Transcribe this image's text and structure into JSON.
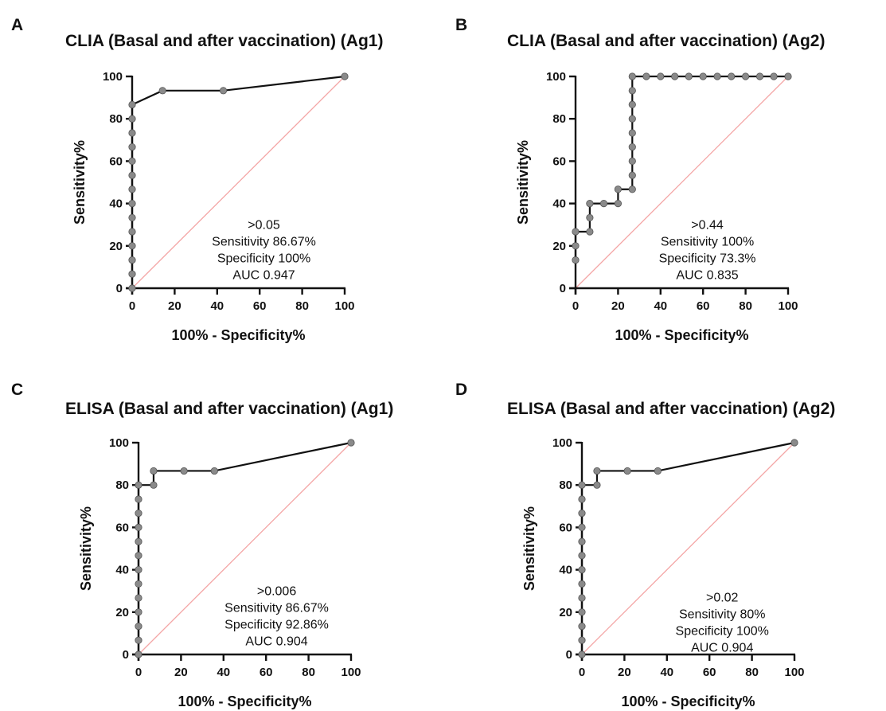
{
  "chart_data": [
    {
      "panel_letter": "A",
      "type": "line",
      "title": "CLIA (Basal and after vaccination) (Ag1)",
      "xlabel": "100% - Specificity%",
      "ylabel": "Sensitivity%",
      "xlim": [
        0,
        100
      ],
      "ylim": [
        0,
        100
      ],
      "xticks": [
        "0",
        "20",
        "40",
        "60",
        "80",
        "100"
      ],
      "yticks": [
        "0",
        "20",
        "40",
        "60",
        "80",
        "100"
      ],
      "series": [
        {
          "x": [
            0,
            0,
            0,
            0,
            0,
            0,
            0,
            0,
            0,
            0,
            0,
            0,
            0,
            0,
            14.3,
            42.9,
            100
          ],
          "y": [
            0,
            6.7,
            13.3,
            20,
            26.7,
            33.3,
            40,
            46.7,
            53.3,
            60,
            66.7,
            73.3,
            80,
            86.67,
            93.3,
            93.3,
            100
          ]
        }
      ],
      "reference_line": [
        [
          0,
          0
        ],
        [
          100,
          100
        ]
      ],
      "annotation": [
        ">0.05",
        "Sensitivity 86.67%",
        "Specificity 100%",
        "AUC 0.947"
      ],
      "annotation_anchor": [
        62,
        28
      ],
      "colors": {
        "curve": "#111111",
        "marker": "#8a8a8a",
        "reference": "#f4a6a6"
      }
    },
    {
      "panel_letter": "B",
      "type": "line",
      "title": "CLIA (Basal and after vaccination) (Ag2)",
      "xlabel": "100% - Specificity%",
      "ylabel": "Sensitivity%",
      "xlim": [
        0,
        100
      ],
      "ylim": [
        0,
        100
      ],
      "xticks": [
        "0",
        "20",
        "40",
        "60",
        "80",
        "100"
      ],
      "yticks": [
        "0",
        "20",
        "40",
        "60",
        "80",
        "100"
      ],
      "series": [
        {
          "x": [
            0,
            0,
            0,
            6.7,
            6.7,
            6.7,
            13.3,
            20,
            20,
            26.7,
            26.7,
            26.7,
            26.7,
            26.7,
            26.7,
            26.7,
            26.7,
            26.7,
            33.3,
            40,
            46.7,
            53.3,
            60,
            66.7,
            73.3,
            80,
            86.7,
            93.3,
            100
          ],
          "y": [
            13.3,
            20,
            26.7,
            26.7,
            33.3,
            40,
            40,
            40,
            46.7,
            46.7,
            53.3,
            60,
            66.7,
            73.3,
            80,
            86.7,
            93.3,
            100,
            100,
            100,
            100,
            100,
            100,
            100,
            100,
            100,
            100,
            100,
            100
          ]
        }
      ],
      "reference_line": [
        [
          0,
          0
        ],
        [
          100,
          100
        ]
      ],
      "annotation": [
        ">0.44",
        "Sensitivity 100%",
        "Specificity 73.3%",
        "AUC 0.835"
      ],
      "annotation_anchor": [
        62,
        28
      ],
      "colors": {
        "curve": "#111111",
        "marker": "#8a8a8a",
        "reference": "#f4a6a6"
      }
    },
    {
      "panel_letter": "C",
      "type": "line",
      "title": "ELISA (Basal and after vaccination) (Ag1)",
      "xlabel": "100% - Specificity%",
      "ylabel": "Sensitivity%",
      "xlim": [
        0,
        100
      ],
      "ylim": [
        0,
        100
      ],
      "xticks": [
        "0",
        "20",
        "40",
        "60",
        "80",
        "100"
      ],
      "yticks": [
        "0",
        "20",
        "40",
        "60",
        "80",
        "100"
      ],
      "series": [
        {
          "x": [
            0,
            0,
            0,
            0,
            0,
            0,
            0,
            0,
            0,
            0,
            0,
            0,
            0,
            7.1,
            7.1,
            21.4,
            35.7,
            100
          ],
          "y": [
            0,
            6.7,
            13.3,
            20,
            26.7,
            33.3,
            40,
            46.7,
            53.3,
            60,
            66.7,
            73.3,
            80,
            80,
            86.67,
            86.67,
            86.67,
            100
          ]
        }
      ],
      "reference_line": [
        [
          0,
          0
        ],
        [
          100,
          100
        ]
      ],
      "annotation": [
        ">0.006",
        "Sensitivity 86.67%",
        "Specificity 92.86%",
        "AUC 0.904"
      ],
      "annotation_anchor": [
        65,
        28
      ],
      "colors": {
        "curve": "#111111",
        "marker": "#8a8a8a",
        "reference": "#f4a6a6"
      }
    },
    {
      "panel_letter": "D",
      "type": "line",
      "title": "ELISA (Basal and after vaccination) (Ag2)",
      "xlabel": "100% - Specificity%",
      "ylabel": "Sensitivity%",
      "xlim": [
        0,
        100
      ],
      "ylim": [
        0,
        100
      ],
      "xticks": [
        "0",
        "20",
        "40",
        "60",
        "80",
        "100"
      ],
      "yticks": [
        "0",
        "20",
        "40",
        "60",
        "80",
        "100"
      ],
      "series": [
        {
          "x": [
            0,
            0,
            0,
            0,
            0,
            0,
            0,
            0,
            0,
            0,
            0,
            0,
            0,
            7.1,
            7.1,
            21.4,
            35.7,
            100
          ],
          "y": [
            0,
            6.7,
            13.3,
            20,
            26.7,
            33.3,
            40,
            46.7,
            53.3,
            60,
            66.7,
            73.3,
            80,
            80,
            86.67,
            86.67,
            86.67,
            100
          ]
        }
      ],
      "reference_line": [
        [
          0,
          0
        ],
        [
          100,
          100
        ]
      ],
      "annotation": [
        ">0.02",
        "Sensitivity 80%",
        "Specificity 100%",
        "AUC 0.904"
      ],
      "annotation_anchor": [
        66,
        25
      ],
      "colors": {
        "curve": "#111111",
        "marker": "#8a8a8a",
        "reference": "#f4a6a6"
      }
    }
  ]
}
